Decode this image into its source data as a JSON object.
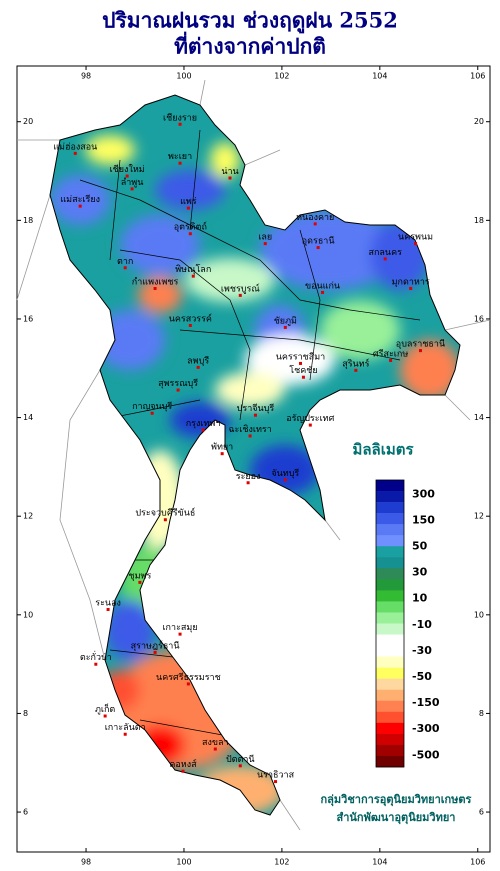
{
  "title": {
    "line1": "ปริมาณฝนรวม ช่วงฤดูฝน 2552",
    "line2": "ที่ต่างจากค่าปกติ"
  },
  "map": {
    "xlim": [
      96.59,
      106.25
    ],
    "ylim": [
      5.19,
      21.13
    ],
    "xticks": [
      98,
      100,
      102,
      104,
      106
    ],
    "yticks": [
      6,
      8,
      10,
      12,
      14,
      16,
      18,
      20
    ],
    "places": [
      {
        "name": "เชียงราย",
        "lon": 99.92,
        "lat": 20.08
      },
      {
        "name": "แม่ฮ่องสอน",
        "lon": 97.78,
        "lat": 19.49
      },
      {
        "name": "พะเยา",
        "lon": 99.92,
        "lat": 19.29
      },
      {
        "name": "น่าน",
        "lon": 100.94,
        "lat": 18.99
      },
      {
        "name": "เชียงใหม่",
        "lon": 98.84,
        "lat": 19.03
      },
      {
        "name": "ลำพูน",
        "lon": 98.94,
        "lat": 18.77
      },
      {
        "name": "แพร่",
        "lon": 100.09,
        "lat": 18.38
      },
      {
        "name": "แม่สะเรียง",
        "lon": 97.88,
        "lat": 18.42
      },
      {
        "name": "อุตรดิตถ์",
        "lon": 100.13,
        "lat": 17.86
      },
      {
        "name": "ตาก",
        "lon": 98.8,
        "lat": 17.17
      },
      {
        "name": "พิษณุโลก",
        "lon": 100.19,
        "lat": 17.0
      },
      {
        "name": "กำแพงเพชร",
        "lon": 99.41,
        "lat": 16.75
      },
      {
        "name": "เพชรบูรณ์",
        "lon": 101.15,
        "lat": 16.61
      },
      {
        "name": "หนองคาย",
        "lon": 102.68,
        "lat": 18.06
      },
      {
        "name": "อุดรธานี",
        "lon": 102.74,
        "lat": 17.58
      },
      {
        "name": "เลย",
        "lon": 101.66,
        "lat": 17.66
      },
      {
        "name": "นครพนม",
        "lon": 104.73,
        "lat": 17.66
      },
      {
        "name": "สกลนคร",
        "lon": 104.11,
        "lat": 17.35
      },
      {
        "name": "มุกดาหาร",
        "lon": 104.63,
        "lat": 16.75
      },
      {
        "name": "ขอนแก่น",
        "lon": 102.83,
        "lat": 16.67
      },
      {
        "name": "นครสวรรค์",
        "lon": 100.13,
        "lat": 16.0
      },
      {
        "name": "ชัยภูมิ",
        "lon": 102.07,
        "lat": 15.96
      },
      {
        "name": "อุบลราชธานี",
        "lon": 104.83,
        "lat": 15.49
      },
      {
        "name": "ศรีสะเกษ",
        "lon": 104.22,
        "lat": 15.29
      },
      {
        "name": "สุรินทร์",
        "lon": 103.51,
        "lat": 15.09
      },
      {
        "name": "ลพบุรี",
        "lon": 100.29,
        "lat": 15.15
      },
      {
        "name": "นครราชสีมา",
        "lon": 102.38,
        "lat": 15.23
      },
      {
        "name": "โชคชัย",
        "lon": 102.44,
        "lat": 14.95
      },
      {
        "name": "สุพรรณบุรี",
        "lon": 99.88,
        "lat": 14.69
      },
      {
        "name": "กาญจนบุรี",
        "lon": 99.35,
        "lat": 14.22
      },
      {
        "name": "กรุงเทพฯ",
        "lon": 100.39,
        "lat": 13.88
      },
      {
        "name": "ปราจีนบุรี",
        "lon": 101.46,
        "lat": 14.18
      },
      {
        "name": "อรัญประเทศ",
        "lon": 102.58,
        "lat": 13.98
      },
      {
        "name": "ฉะเชิงเทรา",
        "lon": 101.35,
        "lat": 13.76
      },
      {
        "name": "พัทยา",
        "lon": 100.78,
        "lat": 13.4
      },
      {
        "name": "ระยอง",
        "lon": 101.31,
        "lat": 12.81
      },
      {
        "name": "จันทบุรี",
        "lon": 102.07,
        "lat": 12.87
      },
      {
        "name": "ประจวบคีรีขันธ์",
        "lon": 99.62,
        "lat": 12.06
      },
      {
        "name": "ชุมพร",
        "lon": 99.1,
        "lat": 10.79
      },
      {
        "name": "ระนอง",
        "lon": 98.45,
        "lat": 10.24
      },
      {
        "name": "เกาะสมุย",
        "lon": 99.92,
        "lat": 9.74
      },
      {
        "name": "สุราษฎร์ธานี",
        "lon": 99.41,
        "lat": 9.37
      },
      {
        "name": "ตะกั่วป่า",
        "lon": 98.2,
        "lat": 9.13
      },
      {
        "name": "นครศรีธรรมราช",
        "lon": 100.09,
        "lat": 8.73
      },
      {
        "name": "ภูเก็ต",
        "lon": 98.39,
        "lat": 8.08
      },
      {
        "name": "เกาะลันตา",
        "lon": 98.8,
        "lat": 7.71
      },
      {
        "name": "สงขลา",
        "lon": 100.64,
        "lat": 7.41
      },
      {
        "name": "คอหงส์",
        "lon": 99.98,
        "lat": 6.96
      },
      {
        "name": "ปัตตานี",
        "lon": 101.15,
        "lat": 7.07
      },
      {
        "name": "นราธิวาส",
        "lon": 101.87,
        "lat": 6.75
      }
    ]
  },
  "legend": {
    "title": "มิลลิเมตร",
    "labels": [
      300,
      150,
      50,
      30,
      10,
      -10,
      -30,
      -50,
      -150,
      -300,
      -500
    ],
    "colors": [
      "#00008b",
      "#0a1aa8",
      "#1f3cd0",
      "#3c5ae8",
      "#5a7af5",
      "#7090ff",
      "#1aa0a0",
      "#169090",
      "#2e8b57",
      "#229a3a",
      "#33bb33",
      "#66dd66",
      "#99f099",
      "#c8f8c8",
      "#ffffff",
      "#ffffff",
      "#ffffc0",
      "#ffff60",
      "#ffd8a0",
      "#ffb070",
      "#ff8050",
      "#ff5030",
      "#ff0000",
      "#d00000",
      "#a00000",
      "#700000"
    ]
  },
  "footer": {
    "line1": "กลุ่มวิชาการอุตุนิยมวิทยาเกษตร",
    "line2": "สำนักพัฒนาอุตุนิยมวิทยา"
  }
}
